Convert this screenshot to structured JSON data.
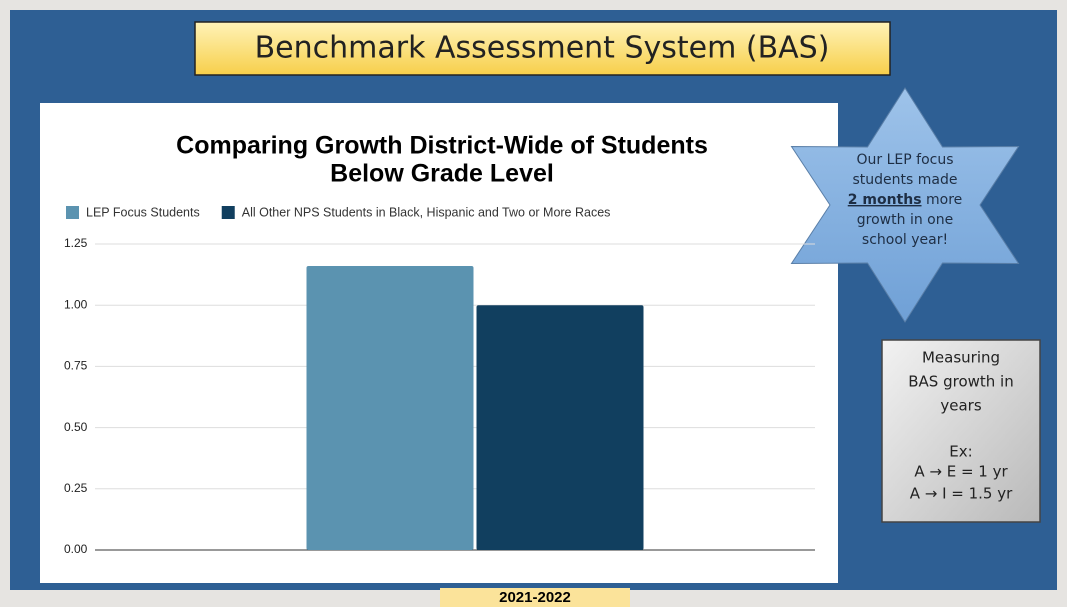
{
  "slide_title": "Benchmark Assessment System (BAS)",
  "chart_data": {
    "type": "bar",
    "title": [
      "Comparing Growth District-Wide of Students",
      "Below Grade Level"
    ],
    "categories": [
      "2021-2022"
    ],
    "series": [
      {
        "name": "LEP Focus Students",
        "color": "#5b93b0",
        "values": [
          1.16
        ]
      },
      {
        "name": "All Other NPS Students in Black, Hispanic and Two or More Races",
        "color": "#113f5f",
        "values": [
          1.0
        ]
      }
    ],
    "ylim": [
      0,
      1.25
    ],
    "yticks": [
      {
        "value": 0,
        "label": "0.00"
      },
      0.25,
      {
        "value": 0.5,
        "label": "0.50"
      },
      0.75,
      {
        "value": 1,
        "label": "1.00"
      },
      1.25
    ],
    "grid": true,
    "legend": "top"
  },
  "callout": {
    "lines_before": [
      "Our LEP focus",
      "students made"
    ],
    "emphasis": "2 months",
    "emphasis_rest": "more",
    "lines_after": [
      "growth in one",
      "school year!"
    ]
  },
  "note_box": {
    "lines": [
      "Measuring",
      "BAS growth in",
      "years",
      "Ex:",
      "A → E = 1 yr",
      "A → I = 1.5 yr"
    ]
  }
}
